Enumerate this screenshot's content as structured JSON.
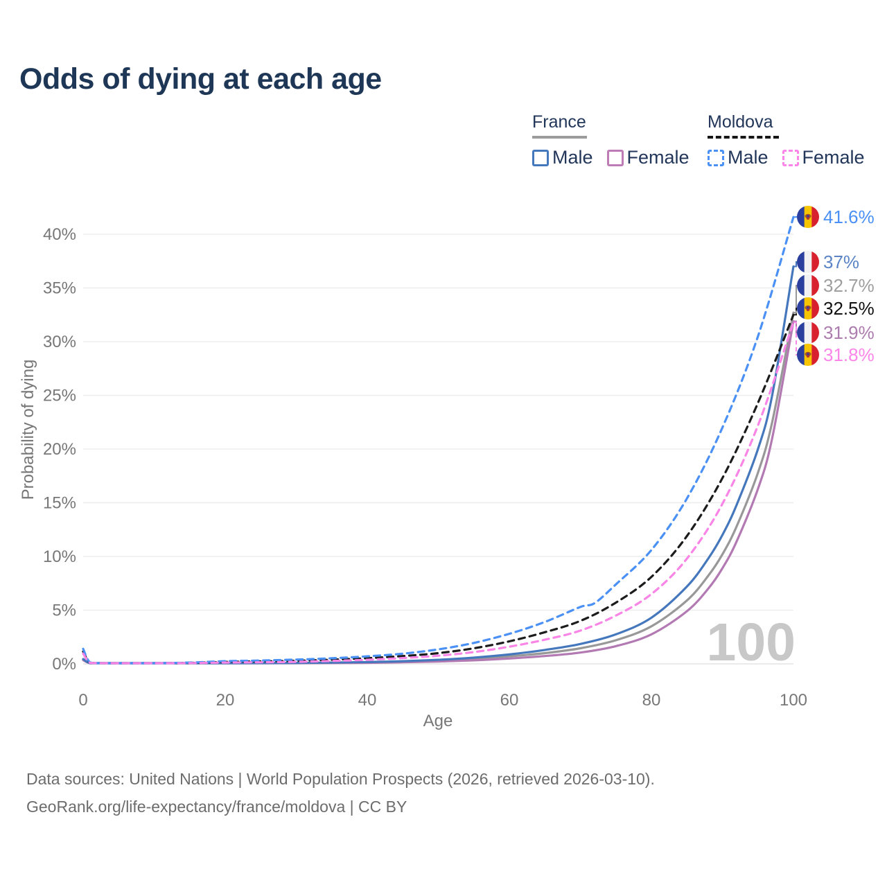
{
  "title": "Odds of dying at each age",
  "legend": {
    "groups": [
      {
        "name": "France",
        "line_style": "solid",
        "items": [
          {
            "label": "Male",
            "color": "#4577bc"
          },
          {
            "label": "Female",
            "color": "#bd7cb5"
          }
        ]
      },
      {
        "name": "Moldova",
        "line_style": "dashed",
        "items": [
          {
            "label": "Male",
            "color": "#4a90f5"
          },
          {
            "label": "Female",
            "color": "#fb85e8"
          }
        ]
      }
    ]
  },
  "chart_data": {
    "type": "line",
    "xlabel": "Age",
    "ylabel": "Probability of dying",
    "xlim": [
      0,
      100
    ],
    "ylim_pct": [
      0,
      40
    ],
    "x_ticks": [
      "0",
      "20",
      "40",
      "60",
      "80",
      "100"
    ],
    "y_ticks": [
      "0%",
      "5%",
      "10%",
      "15%",
      "20%",
      "25%",
      "30%",
      "35%",
      "40%"
    ],
    "grid": true,
    "legend_position": "top-right",
    "age_counter_watermark": "100",
    "series": [
      {
        "name": "France Both sexes",
        "country": "france",
        "sex": "both",
        "line_style": "solid",
        "color": "#989898",
        "end_value_pct": 32.7,
        "points": [
          [
            0,
            0.4
          ],
          [
            1,
            0.035
          ],
          [
            3,
            0.015
          ],
          [
            5,
            0.01
          ],
          [
            10,
            0.01
          ],
          [
            15,
            0.025
          ],
          [
            20,
            0.05
          ],
          [
            25,
            0.06
          ],
          [
            30,
            0.075
          ],
          [
            35,
            0.1
          ],
          [
            40,
            0.14
          ],
          [
            45,
            0.2
          ],
          [
            50,
            0.3
          ],
          [
            55,
            0.46
          ],
          [
            60,
            0.7
          ],
          [
            65,
            1.0
          ],
          [
            70,
            1.45
          ],
          [
            75,
            2.2
          ],
          [
            80,
            3.5
          ],
          [
            85,
            5.9
          ],
          [
            88,
            8.2
          ],
          [
            90,
            10.2
          ],
          [
            92,
            12.8
          ],
          [
            95,
            17.8
          ],
          [
            97,
            22.5
          ],
          [
            100,
            32.7
          ]
        ]
      },
      {
        "name": "France Female",
        "country": "france",
        "sex": "female",
        "line_style": "solid",
        "color": "#b279b2",
        "end_value_pct": 31.9,
        "points": [
          [
            0,
            0.35
          ],
          [
            1,
            0.03
          ],
          [
            3,
            0.012
          ],
          [
            5,
            0.008
          ],
          [
            10,
            0.008
          ],
          [
            15,
            0.02
          ],
          [
            20,
            0.035
          ],
          [
            25,
            0.045
          ],
          [
            30,
            0.055
          ],
          [
            35,
            0.075
          ],
          [
            40,
            0.1
          ],
          [
            45,
            0.15
          ],
          [
            50,
            0.22
          ],
          [
            55,
            0.33
          ],
          [
            60,
            0.5
          ],
          [
            65,
            0.73
          ],
          [
            70,
            1.05
          ],
          [
            75,
            1.65
          ],
          [
            80,
            2.75
          ],
          [
            85,
            4.9
          ],
          [
            88,
            7.0
          ],
          [
            90,
            8.9
          ],
          [
            92,
            11.4
          ],
          [
            95,
            16.3
          ],
          [
            97,
            21.0
          ],
          [
            100,
            31.9
          ]
        ]
      },
      {
        "name": "France Male",
        "country": "france",
        "sex": "male",
        "line_style": "solid",
        "color": "#4577bc",
        "end_value_pct": 37.0,
        "points": [
          [
            0,
            0.45
          ],
          [
            1,
            0.04
          ],
          [
            3,
            0.02
          ],
          [
            5,
            0.01
          ],
          [
            10,
            0.01
          ],
          [
            15,
            0.03
          ],
          [
            20,
            0.06
          ],
          [
            25,
            0.07
          ],
          [
            30,
            0.09
          ],
          [
            35,
            0.12
          ],
          [
            40,
            0.17
          ],
          [
            45,
            0.25
          ],
          [
            50,
            0.38
          ],
          [
            55,
            0.58
          ],
          [
            60,
            0.88
          ],
          [
            65,
            1.3
          ],
          [
            70,
            1.85
          ],
          [
            75,
            2.75
          ],
          [
            80,
            4.3
          ],
          [
            85,
            7.2
          ],
          [
            88,
            9.8
          ],
          [
            90,
            12.0
          ],
          [
            92,
            14.8
          ],
          [
            95,
            20.0
          ],
          [
            97,
            25.0
          ],
          [
            100,
            37.0
          ]
        ]
      },
      {
        "name": "Moldova Both sexes",
        "country": "moldova",
        "sex": "both",
        "line_style": "dashed",
        "color": "#1c1c1c",
        "end_value_pct": 32.5,
        "points": [
          [
            0,
            1.15
          ],
          [
            1,
            0.1
          ],
          [
            3,
            0.05
          ],
          [
            5,
            0.04
          ],
          [
            10,
            0.05
          ],
          [
            15,
            0.09
          ],
          [
            20,
            0.18
          ],
          [
            25,
            0.23
          ],
          [
            30,
            0.29
          ],
          [
            35,
            0.39
          ],
          [
            40,
            0.53
          ],
          [
            45,
            0.73
          ],
          [
            50,
            1.0
          ],
          [
            55,
            1.45
          ],
          [
            60,
            2.1
          ],
          [
            65,
            2.95
          ],
          [
            70,
            4.0
          ],
          [
            75,
            5.7
          ],
          [
            80,
            8.1
          ],
          [
            85,
            11.9
          ],
          [
            90,
            17.3
          ],
          [
            95,
            24.3
          ],
          [
            100,
            32.5
          ]
        ]
      },
      {
        "name": "Moldova Male",
        "country": "moldova",
        "sex": "male",
        "line_style": "dashed",
        "color": "#4a90f5",
        "end_value_pct": 41.6,
        "points": [
          [
            0,
            1.4
          ],
          [
            1,
            0.12
          ],
          [
            3,
            0.06
          ],
          [
            5,
            0.05
          ],
          [
            10,
            0.06
          ],
          [
            15,
            0.12
          ],
          [
            20,
            0.25
          ],
          [
            25,
            0.31
          ],
          [
            30,
            0.4
          ],
          [
            35,
            0.52
          ],
          [
            40,
            0.7
          ],
          [
            45,
            0.95
          ],
          [
            50,
            1.35
          ],
          [
            55,
            1.95
          ],
          [
            60,
            2.8
          ],
          [
            65,
            3.9
          ],
          [
            70,
            5.3
          ],
          [
            72,
            5.65
          ],
          [
            75,
            7.4
          ],
          [
            80,
            10.6
          ],
          [
            85,
            15.4
          ],
          [
            90,
            22.0
          ],
          [
            95,
            30.5
          ],
          [
            100,
            41.6
          ]
        ]
      },
      {
        "name": "Moldova Female",
        "country": "moldova",
        "sex": "female",
        "line_style": "dashed",
        "color": "#f985e6",
        "end_value_pct": 31.8,
        "points": [
          [
            0,
            0.95
          ],
          [
            1,
            0.09
          ],
          [
            3,
            0.04
          ],
          [
            5,
            0.03
          ],
          [
            10,
            0.04
          ],
          [
            15,
            0.07
          ],
          [
            20,
            0.12
          ],
          [
            25,
            0.15
          ],
          [
            30,
            0.19
          ],
          [
            35,
            0.27
          ],
          [
            40,
            0.38
          ],
          [
            45,
            0.54
          ],
          [
            50,
            0.76
          ],
          [
            55,
            1.1
          ],
          [
            60,
            1.6
          ],
          [
            65,
            2.25
          ],
          [
            70,
            3.1
          ],
          [
            75,
            4.5
          ],
          [
            80,
            6.5
          ],
          [
            85,
            9.8
          ],
          [
            90,
            14.9
          ],
          [
            95,
            22.2
          ],
          [
            100,
            31.8
          ]
        ]
      }
    ],
    "end_labels": [
      {
        "text": "41.6%",
        "series": "Moldova Male",
        "flag": "moldova",
        "color": "#4a90f5",
        "value_pct": 41.6
      },
      {
        "text": "37%",
        "series": "France Male",
        "flag": "france",
        "color": "#5b84c6",
        "value_pct": 37.0
      },
      {
        "text": "32.7%",
        "series": "France Both sexes",
        "flag": "france",
        "color": "#9e9e9e",
        "value_pct": 32.7
      },
      {
        "text": "32.5%",
        "series": "Moldova Both sexes",
        "flag": "moldova",
        "color": "#111111",
        "value_pct": 32.5
      },
      {
        "text": "31.9%",
        "series": "France Female",
        "flag": "france",
        "color": "#ad7cae",
        "value_pct": 31.9
      },
      {
        "text": "31.8%",
        "series": "Moldova Female",
        "flag": "moldova",
        "color": "#fb85e8",
        "value_pct": 31.8
      }
    ]
  },
  "colors": {
    "title_text": "#1e3756",
    "axis_text": "#777777",
    "gridline": "#ededed",
    "baseline": "#e4e4e4",
    "watermark": "#c8c8c8",
    "legend_text": "#22365a",
    "source_text": "#6c6c6c",
    "flag_france": [
      "#2a3f9e",
      "#f2f2f2",
      "#d7212e"
    ],
    "flag_moldova": [
      "#2a3f9e",
      "#f6c500",
      "#d7212e"
    ],
    "flag_emblem": [
      "#9c5a25",
      "#b03636",
      "#2f3f9e"
    ]
  },
  "source": {
    "line1": "Data sources: United Nations | World Population Prospects (2026, retrieved 2026-03-10).",
    "line2": "GeoRank.org/life-expectancy/france/moldova | CC BY"
  }
}
